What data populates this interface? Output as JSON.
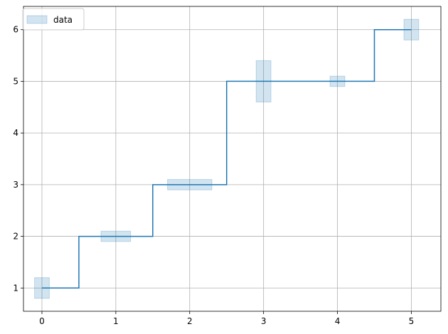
{
  "chart_data": {
    "type": "line",
    "title": "",
    "xlabel": "",
    "ylabel": "",
    "xlim": [
      -0.25,
      5.4
    ],
    "ylim": [
      0.55,
      6.45
    ],
    "xticks": [
      0,
      1,
      2,
      3,
      4,
      5
    ],
    "yticks": [
      1,
      2,
      3,
      4,
      5,
      6
    ],
    "xtick_labels": [
      "0",
      "1",
      "2",
      "3",
      "4",
      "5"
    ],
    "ytick_labels": [
      "1",
      "2",
      "3",
      "4",
      "5",
      "6"
    ],
    "grid": true,
    "legend": {
      "location": "upper-left",
      "entries": [
        "data"
      ]
    },
    "series": [
      {
        "name": "data",
        "style": "steps-mid",
        "color": "#1f77b4",
        "x": [
          0,
          1,
          2,
          3,
          4,
          5
        ],
        "y": [
          1,
          2,
          3,
          5,
          5,
          6
        ],
        "xerr": [
          0.1,
          0.2,
          0.3,
          0.1,
          0.1,
          0.1
        ],
        "yerr": [
          0.2,
          0.1,
          0.1,
          0.4,
          0.1,
          0.2
        ],
        "box_color": "#1f77b4",
        "box_alpha": 0.2
      }
    ]
  }
}
